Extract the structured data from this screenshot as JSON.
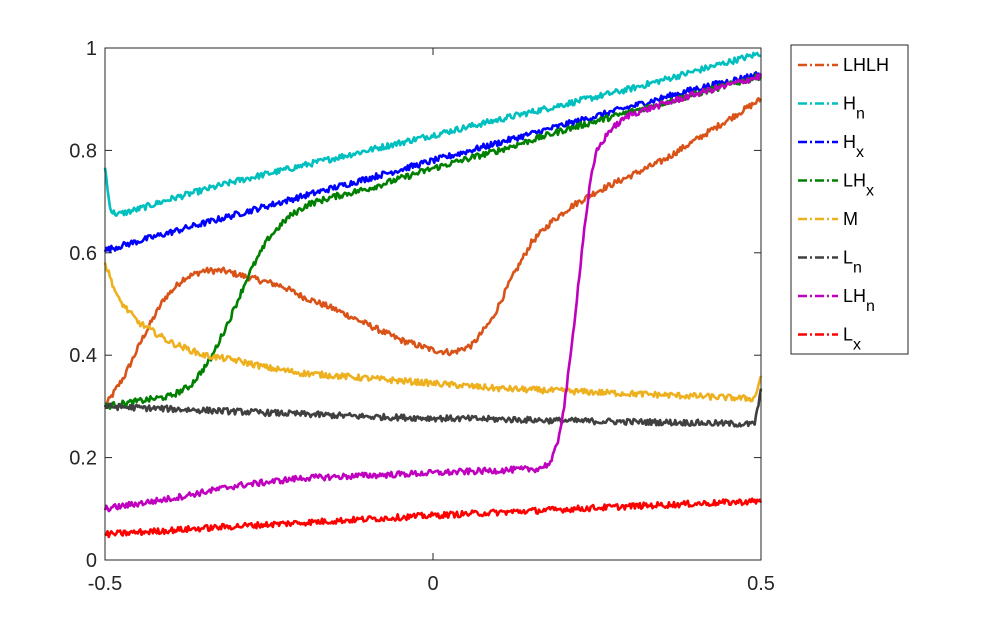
{
  "chart_data": {
    "type": "line",
    "title": "",
    "xlabel": "",
    "ylabel": "",
    "xlim": [
      -0.5,
      0.5
    ],
    "ylim": [
      0,
      1
    ],
    "x_ticks": [
      -0.5,
      0,
      0.5
    ],
    "x_tick_labels": [
      "-0.5",
      "0",
      "0.5"
    ],
    "y_ticks": [
      0,
      0.2,
      0.4,
      0.6,
      0.8,
      1
    ],
    "y_tick_labels": [
      "0",
      "0.2",
      "0.4",
      "0.6",
      "0.8",
      "1"
    ],
    "grid": false,
    "legend_position": "outside-right",
    "line_style": "dash-dot",
    "series": [
      {
        "name": "LHLH",
        "label": "LHLH",
        "sub": "",
        "color": "#D95319",
        "x": [
          -0.5,
          -0.47,
          -0.44,
          -0.41,
          -0.38,
          -0.35,
          -0.32,
          -0.29,
          -0.26,
          -0.23,
          -0.2,
          -0.15,
          -0.1,
          -0.05,
          0.0,
          0.03,
          0.06,
          0.09,
          0.12,
          0.15,
          0.18,
          0.21,
          0.25,
          0.3,
          0.35,
          0.4,
          0.45,
          0.5
        ],
        "y": [
          0.3,
          0.36,
          0.44,
          0.51,
          0.55,
          0.565,
          0.565,
          0.555,
          0.545,
          0.535,
          0.515,
          0.49,
          0.46,
          0.43,
          0.41,
          0.405,
          0.42,
          0.47,
          0.55,
          0.62,
          0.66,
          0.69,
          0.72,
          0.75,
          0.78,
          0.82,
          0.86,
          0.9
        ]
      },
      {
        "name": "Hn",
        "label": "H",
        "sub": "n",
        "color": "#00BFBF",
        "x": [
          -0.5,
          -0.495,
          -0.49,
          -0.48,
          -0.45,
          -0.4,
          -0.3,
          -0.2,
          -0.1,
          0.0,
          0.1,
          0.2,
          0.3,
          0.4,
          0.5
        ],
        "y": [
          0.77,
          0.71,
          0.68,
          0.675,
          0.685,
          0.705,
          0.74,
          0.77,
          0.8,
          0.83,
          0.86,
          0.89,
          0.92,
          0.955,
          0.99
        ]
      },
      {
        "name": "Hx",
        "label": "H",
        "sub": "x",
        "color": "#0000FF",
        "x": [
          -0.5,
          -0.4,
          -0.3,
          -0.2,
          -0.1,
          0.0,
          0.1,
          0.2,
          0.3,
          0.4,
          0.5
        ],
        "y": [
          0.605,
          0.64,
          0.675,
          0.71,
          0.745,
          0.78,
          0.815,
          0.85,
          0.885,
          0.92,
          0.95
        ]
      },
      {
        "name": "LHx",
        "label": "LH",
        "sub": "x",
        "color": "#008000",
        "x": [
          -0.5,
          -0.45,
          -0.4,
          -0.37,
          -0.34,
          -0.31,
          -0.28,
          -0.25,
          -0.22,
          -0.19,
          -0.15,
          -0.1,
          -0.05,
          0.0,
          0.1,
          0.2,
          0.3,
          0.4,
          0.5
        ],
        "y": [
          0.3,
          0.31,
          0.32,
          0.34,
          0.39,
          0.47,
          0.56,
          0.63,
          0.67,
          0.695,
          0.71,
          0.725,
          0.745,
          0.765,
          0.8,
          0.84,
          0.875,
          0.91,
          0.945
        ]
      },
      {
        "name": "M",
        "label": "M",
        "sub": "",
        "color": "#EDB120",
        "x": [
          -0.5,
          -0.48,
          -0.45,
          -0.4,
          -0.35,
          -0.3,
          -0.25,
          -0.2,
          -0.1,
          0.0,
          0.1,
          0.2,
          0.3,
          0.4,
          0.49,
          0.5
        ],
        "y": [
          0.58,
          0.51,
          0.465,
          0.425,
          0.4,
          0.39,
          0.375,
          0.365,
          0.355,
          0.345,
          0.335,
          0.33,
          0.325,
          0.32,
          0.315,
          0.36
        ]
      },
      {
        "name": "Ln",
        "label": "L",
        "sub": "n",
        "color": "#404040",
        "x": [
          -0.5,
          -0.4,
          -0.3,
          -0.2,
          -0.1,
          0.0,
          0.1,
          0.2,
          0.3,
          0.4,
          0.49,
          0.5
        ],
        "y": [
          0.3,
          0.295,
          0.29,
          0.285,
          0.28,
          0.277,
          0.275,
          0.272,
          0.27,
          0.268,
          0.265,
          0.33
        ]
      },
      {
        "name": "LHn",
        "label": "LH",
        "sub": "n",
        "color": "#BF00BF",
        "x": [
          -0.5,
          -0.4,
          -0.3,
          -0.2,
          -0.1,
          0.0,
          0.1,
          0.16,
          0.18,
          0.19,
          0.2,
          0.21,
          0.22,
          0.23,
          0.24,
          0.25,
          0.27,
          0.3,
          0.4,
          0.5
        ],
        "y": [
          0.1,
          0.12,
          0.145,
          0.16,
          0.165,
          0.17,
          0.175,
          0.178,
          0.19,
          0.23,
          0.3,
          0.4,
          0.52,
          0.64,
          0.74,
          0.8,
          0.84,
          0.87,
          0.91,
          0.945
        ]
      },
      {
        "name": "Lx",
        "label": "L",
        "sub": "x",
        "color": "#FF0000",
        "x": [
          -0.5,
          -0.4,
          -0.3,
          -0.2,
          -0.1,
          0.0,
          0.1,
          0.2,
          0.3,
          0.4,
          0.5
        ],
        "y": [
          0.05,
          0.058,
          0.066,
          0.073,
          0.08,
          0.087,
          0.093,
          0.099,
          0.105,
          0.11,
          0.115
        ]
      }
    ]
  }
}
